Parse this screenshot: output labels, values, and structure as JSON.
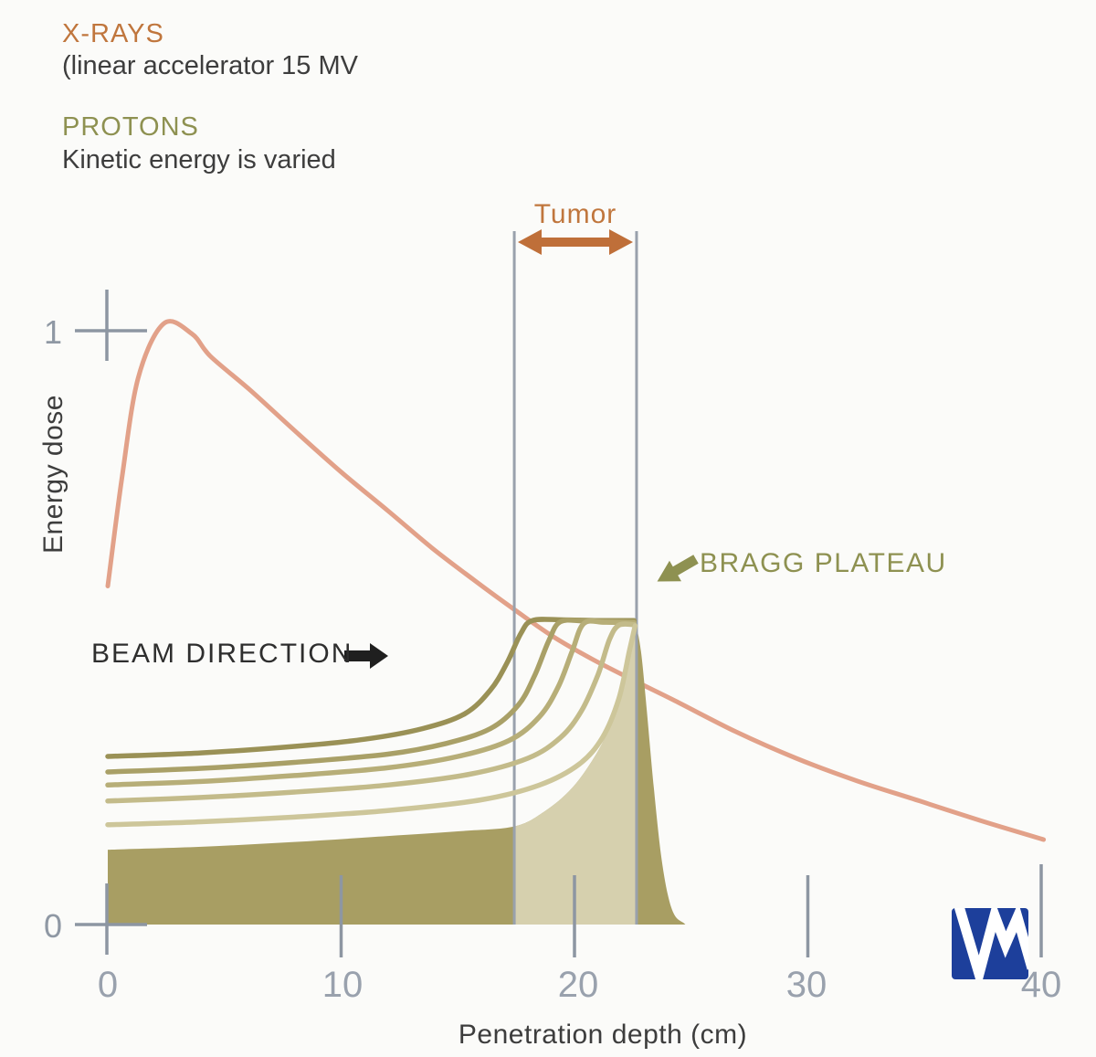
{
  "page": {
    "background": "#fbfbf9"
  },
  "legend": {
    "xray_title": "X-RAYS",
    "xray_subtitle": "(linear accelerator 15 MV",
    "proton_title": "PROTONS",
    "proton_subtitle": "Kinetic energy is varied"
  },
  "annotations": {
    "tumor": "Tumor",
    "beam_direction": "BEAM DIRECTION",
    "bragg_plateau": "BRAGG PLATEAU"
  },
  "axes": {
    "x_title": "Penetration depth (cm)",
    "y_title": "Energy dose",
    "x_ticks": [
      "0",
      "10",
      "20",
      "30",
      "40"
    ],
    "y_ticks": [
      "1",
      "0"
    ]
  },
  "colors": {
    "xray_accent": "#c0763d",
    "proton_accent": "#8e9151",
    "text_dark": "#3d3d3d",
    "xray_curve": "#e2a189",
    "olive_fill": "#a89e63",
    "beige_fill": "#d6d0ae",
    "proton_strokes": [
      "#9a9156",
      "#a9a067",
      "#b7ae78",
      "#c3bb8a",
      "#cdc69a"
    ],
    "axis_gray": "#8d96a2",
    "guide_gray": "#99a1ac",
    "arrow_orange": "#bf6f39",
    "arrow_black": "#1f1f1f",
    "logo_blue": "#1d3f9b"
  },
  "chart_data": {
    "type": "line",
    "x_unit": "cm",
    "y_unit": "relative energy dose",
    "xlim": [
      0,
      40
    ],
    "ylim": [
      0,
      1.05
    ],
    "grid": false,
    "tumor_region_cm": [
      17.42,
      22.66
    ],
    "bragg_plateau_dose": 0.51,
    "xray_curve": {
      "name": "X-rays (linear accelerator 15 MV)",
      "entrance_dose": 0.57,
      "peak": {
        "cm": 2.4,
        "dose": 1.01
      },
      "points": [
        [
          0,
          0.57
        ],
        [
          0.6,
          0.75
        ],
        [
          1.3,
          0.92
        ],
        [
          2.4,
          1.012
        ],
        [
          3.6,
          0.995
        ],
        [
          4.4,
          0.957
        ],
        [
          6.1,
          0.9
        ],
        [
          8,
          0.832
        ],
        [
          10,
          0.762
        ],
        [
          12,
          0.697
        ],
        [
          13.9,
          0.634
        ],
        [
          15.7,
          0.58
        ],
        [
          17.4,
          0.531
        ],
        [
          19,
          0.487
        ],
        [
          20.8,
          0.446
        ],
        [
          22.6,
          0.41
        ],
        [
          24.3,
          0.377
        ],
        [
          26.9,
          0.325
        ],
        [
          29.5,
          0.28
        ],
        [
          32.1,
          0.242
        ],
        [
          34.8,
          0.208
        ],
        [
          37.4,
          0.175
        ],
        [
          40.1,
          0.143
        ]
      ]
    },
    "proton_curves": [
      {
        "name": "Proton beam 1 (lowest energy shown, peak at 17.9 cm)",
        "points": [
          [
            0,
            0.283
          ],
          [
            4,
            0.289
          ],
          [
            8,
            0.3
          ],
          [
            11,
            0.312
          ],
          [
            13.5,
            0.33
          ],
          [
            15.3,
            0.355
          ],
          [
            16.4,
            0.395
          ],
          [
            17.1,
            0.44
          ],
          [
            17.7,
            0.49
          ],
          [
            18.2,
            0.512
          ],
          [
            19.5,
            0.513
          ],
          [
            21,
            0.512
          ],
          [
            22.55,
            0.512
          ]
        ]
      },
      {
        "name": "Proton beam 2 (peak at 19.0 cm)",
        "points": [
          [
            0,
            0.257
          ],
          [
            4,
            0.263
          ],
          [
            8,
            0.273
          ],
          [
            12,
            0.287
          ],
          [
            14.5,
            0.305
          ],
          [
            16.4,
            0.33
          ],
          [
            17.6,
            0.37
          ],
          [
            18.3,
            0.42
          ],
          [
            18.9,
            0.478
          ],
          [
            19.4,
            0.51
          ],
          [
            20.5,
            0.511
          ],
          [
            22.55,
            0.51
          ]
        ]
      },
      {
        "name": "Proton beam 3 (peak at 19.9 cm)",
        "points": [
          [
            0,
            0.235
          ],
          [
            4,
            0.241
          ],
          [
            8,
            0.251
          ],
          [
            12,
            0.264
          ],
          [
            15,
            0.283
          ],
          [
            17.2,
            0.31
          ],
          [
            18.5,
            0.35
          ],
          [
            19.3,
            0.4
          ],
          [
            19.9,
            0.46
          ],
          [
            20.4,
            0.507
          ],
          [
            21.3,
            0.509
          ],
          [
            22.55,
            0.508
          ]
        ]
      },
      {
        "name": "Proton beam 4 (peak at 20.8 cm)",
        "points": [
          [
            0,
            0.208
          ],
          [
            4,
            0.214
          ],
          [
            8,
            0.223
          ],
          [
            12,
            0.235
          ],
          [
            15.5,
            0.253
          ],
          [
            18,
            0.28
          ],
          [
            19.4,
            0.315
          ],
          [
            20.3,
            0.36
          ],
          [
            21,
            0.42
          ],
          [
            21.5,
            0.48
          ],
          [
            21.9,
            0.504
          ],
          [
            22.55,
            0.505
          ]
        ]
      },
      {
        "name": "Proton beam 5 (peak at 21.9 cm)",
        "points": [
          [
            0,
            0.168
          ],
          [
            4,
            0.173
          ],
          [
            8,
            0.181
          ],
          [
            12,
            0.192
          ],
          [
            16,
            0.21
          ],
          [
            18.5,
            0.235
          ],
          [
            20.2,
            0.27
          ],
          [
            21.2,
            0.315
          ],
          [
            21.9,
            0.38
          ],
          [
            22.35,
            0.46
          ],
          [
            22.6,
            0.503
          ]
        ]
      }
    ],
    "sobp_envelope": {
      "name": "Highest-energy proton beam (filled, Bragg peak at distal tumor edge)",
      "rise": [
        [
          0,
          0.126
        ],
        [
          4,
          0.131
        ],
        [
          8,
          0.139
        ],
        [
          12,
          0.149
        ],
        [
          15,
          0.157
        ],
        [
          17.4,
          0.165
        ],
        [
          18.7,
          0.19
        ],
        [
          19.9,
          0.23
        ],
        [
          20.9,
          0.285
        ],
        [
          21.6,
          0.34
        ],
        [
          22.1,
          0.4
        ],
        [
          22.45,
          0.46
        ],
        [
          22.62,
          0.509
        ]
      ],
      "fall": [
        [
          22.62,
          0.509
        ],
        [
          22.85,
          0.46
        ],
        [
          23.1,
          0.36
        ],
        [
          23.4,
          0.23
        ],
        [
          23.7,
          0.12
        ],
        [
          24.0,
          0.05
        ],
        [
          24.3,
          0.015
        ],
        [
          24.7,
          0.002
        ],
        [
          24.75,
          0
        ]
      ]
    }
  }
}
